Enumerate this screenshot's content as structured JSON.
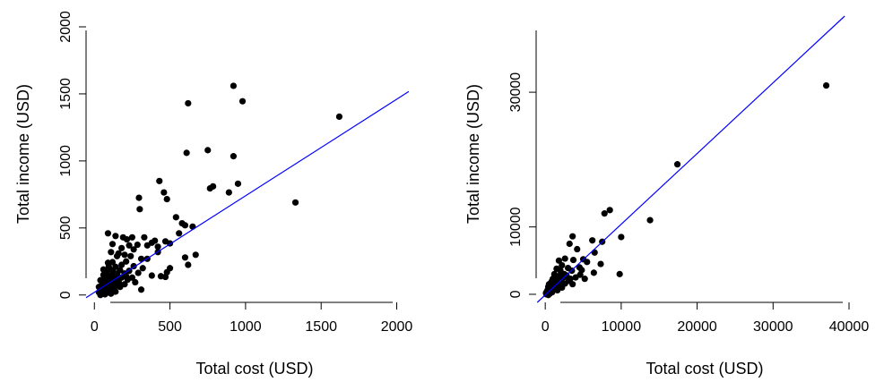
{
  "chart_data": [
    {
      "type": "scatter",
      "xlabel": "Total cost (USD)",
      "ylabel": "Total income (USD)",
      "x_ticks": [
        0,
        500,
        1000,
        1500,
        2000
      ],
      "y_ticks": [
        0,
        500,
        1000,
        1500,
        2000
      ],
      "x_tick_labels": [
        "0",
        "500",
        "1000",
        "1500",
        "2000"
      ],
      "y_tick_labels": [
        "0",
        "500",
        "1000",
        "1500",
        "2000"
      ],
      "xlim": [
        -55,
        2080
      ],
      "ylim": [
        -55,
        2080
      ],
      "grid": false,
      "fit_line": {
        "intercept": 20,
        "slope": 0.72,
        "color": "#0000ff"
      },
      "point_color": "#000000",
      "points": [
        [
          920,
          1560
        ],
        [
          980,
          1445
        ],
        [
          620,
          1430
        ],
        [
          1620,
          1330
        ],
        [
          750,
          1080
        ],
        [
          610,
          1060
        ],
        [
          920,
          1035
        ],
        [
          430,
          850
        ],
        [
          950,
          830
        ],
        [
          785,
          810
        ],
        [
          765,
          795
        ],
        [
          890,
          765
        ],
        [
          460,
          765
        ],
        [
          295,
          725
        ],
        [
          480,
          715
        ],
        [
          1330,
          690
        ],
        [
          300,
          640
        ],
        [
          650,
          510
        ],
        [
          540,
          580
        ],
        [
          580,
          535
        ],
        [
          600,
          520
        ],
        [
          90,
          460
        ],
        [
          140,
          440
        ],
        [
          190,
          430
        ],
        [
          250,
          430
        ],
        [
          330,
          430
        ],
        [
          215,
          415
        ],
        [
          400,
          405
        ],
        [
          380,
          390
        ],
        [
          500,
          385
        ],
        [
          470,
          400
        ],
        [
          120,
          380
        ],
        [
          285,
          375
        ],
        [
          230,
          370
        ],
        [
          350,
          370
        ],
        [
          420,
          360
        ],
        [
          560,
          460
        ],
        [
          180,
          350
        ],
        [
          260,
          340
        ],
        [
          420,
          320
        ],
        [
          600,
          280
        ],
        [
          160,
          310
        ],
        [
          200,
          300
        ],
        [
          110,
          320
        ],
        [
          670,
          300
        ],
        [
          150,
          290
        ],
        [
          240,
          290
        ],
        [
          310,
          270
        ],
        [
          350,
          270
        ],
        [
          620,
          225
        ],
        [
          210,
          250
        ],
        [
          120,
          245
        ],
        [
          90,
          240
        ],
        [
          180,
          225
        ],
        [
          260,
          215
        ],
        [
          140,
          210
        ],
        [
          320,
          200
        ],
        [
          500,
          200
        ],
        [
          100,
          195
        ],
        [
          60,
          190
        ],
        [
          170,
          185
        ],
        [
          120,
          180
        ],
        [
          230,
          180
        ],
        [
          80,
          170
        ],
        [
          290,
          165
        ],
        [
          480,
          170
        ],
        [
          150,
          160
        ],
        [
          200,
          160
        ],
        [
          60,
          150
        ],
        [
          110,
          145
        ],
        [
          380,
          145
        ],
        [
          440,
          140
        ],
        [
          90,
          135
        ],
        [
          140,
          130
        ],
        [
          180,
          130
        ],
        [
          470,
          135
        ],
        [
          70,
          120
        ],
        [
          120,
          115
        ],
        [
          220,
          115
        ],
        [
          40,
          110
        ],
        [
          100,
          100
        ],
        [
          160,
          100
        ],
        [
          60,
          95
        ],
        [
          270,
          95
        ],
        [
          130,
          90
        ],
        [
          80,
          85
        ],
        [
          200,
          80
        ],
        [
          50,
          75
        ],
        [
          110,
          70
        ],
        [
          150,
          70
        ],
        [
          90,
          65
        ],
        [
          30,
          60
        ],
        [
          170,
          60
        ],
        [
          60,
          50
        ],
        [
          120,
          45
        ],
        [
          80,
          40
        ],
        [
          40,
          35
        ],
        [
          310,
          40
        ],
        [
          100,
          30
        ],
        [
          60,
          25
        ],
        [
          140,
          25
        ],
        [
          30,
          20
        ],
        [
          80,
          15
        ],
        [
          50,
          10
        ],
        [
          110,
          10
        ],
        [
          70,
          5
        ],
        [
          40,
          0
        ],
        [
          90,
          55
        ],
        [
          130,
          160
        ],
        [
          210,
          140
        ],
        [
          250,
          130
        ],
        [
          95,
          210
        ],
        [
          75,
          160
        ],
        [
          165,
          85
        ]
      ]
    },
    {
      "type": "scatter",
      "xlabel": "Total cost (USD)",
      "ylabel": "Total income (USD)",
      "x_ticks": [
        0,
        10000,
        20000,
        30000,
        40000
      ],
      "y_ticks": [
        0,
        10000,
        30000
      ],
      "x_tick_labels": [
        "0",
        "10000",
        "20000",
        "30000",
        "40000"
      ],
      "y_tick_labels": [
        "0",
        "10000",
        "30000"
      ],
      "xlim": [
        -1200,
        41300
      ],
      "ylim": [
        -1200,
        41300
      ],
      "grid": false,
      "fit_line": {
        "intercept": -100,
        "slope": 1.05,
        "color": "#0000ff"
      },
      "point_color": "#000000",
      "points": [
        [
          37000,
          31000
        ],
        [
          17400,
          19300
        ],
        [
          13800,
          11000
        ],
        [
          8500,
          12500
        ],
        [
          7800,
          12000
        ],
        [
          10000,
          8500
        ],
        [
          6200,
          8000
        ],
        [
          7500,
          7800
        ],
        [
          3600,
          8600
        ],
        [
          3200,
          7500
        ],
        [
          4200,
          6700
        ],
        [
          6500,
          6200
        ],
        [
          5000,
          5200
        ],
        [
          2600,
          5300
        ],
        [
          3700,
          5100
        ],
        [
          7300,
          4500
        ],
        [
          9800,
          3000
        ],
        [
          1800,
          5000
        ],
        [
          2200,
          4300
        ],
        [
          4500,
          4000
        ],
        [
          5500,
          4800
        ],
        [
          3000,
          3900
        ],
        [
          1500,
          3800
        ],
        [
          2000,
          3500
        ],
        [
          3500,
          3500
        ],
        [
          6400,
          3200
        ],
        [
          4600,
          2900
        ],
        [
          2800,
          2800
        ],
        [
          1200,
          3000
        ],
        [
          1800,
          2700
        ],
        [
          2400,
          2500
        ],
        [
          4000,
          2500
        ],
        [
          5200,
          2300
        ],
        [
          1000,
          2300
        ],
        [
          1500,
          2000
        ],
        [
          3100,
          2000
        ],
        [
          2000,
          1900
        ],
        [
          800,
          1800
        ],
        [
          1200,
          1600
        ],
        [
          2600,
          1600
        ],
        [
          3600,
          1500
        ],
        [
          600,
          1400
        ],
        [
          1700,
          1300
        ],
        [
          900,
          1200
        ],
        [
          400,
          1100
        ],
        [
          1300,
          1000
        ],
        [
          2200,
          1000
        ],
        [
          600,
          800
        ],
        [
          1000,
          700
        ],
        [
          300,
          600
        ],
        [
          1600,
          600
        ],
        [
          700,
          500
        ],
        [
          200,
          400
        ],
        [
          500,
          300
        ],
        [
          900,
          300
        ],
        [
          100,
          200
        ],
        [
          300,
          100
        ],
        [
          600,
          100
        ],
        [
          150,
          0
        ],
        [
          400,
          -100
        ],
        [
          800,
          900
        ],
        [
          1100,
          1400
        ],
        [
          1400,
          2400
        ],
        [
          2500,
          3000
        ],
        [
          3300,
          2300
        ],
        [
          4800,
          3600
        ],
        [
          900,
          2000
        ],
        [
          500,
          1500
        ]
      ]
    }
  ]
}
